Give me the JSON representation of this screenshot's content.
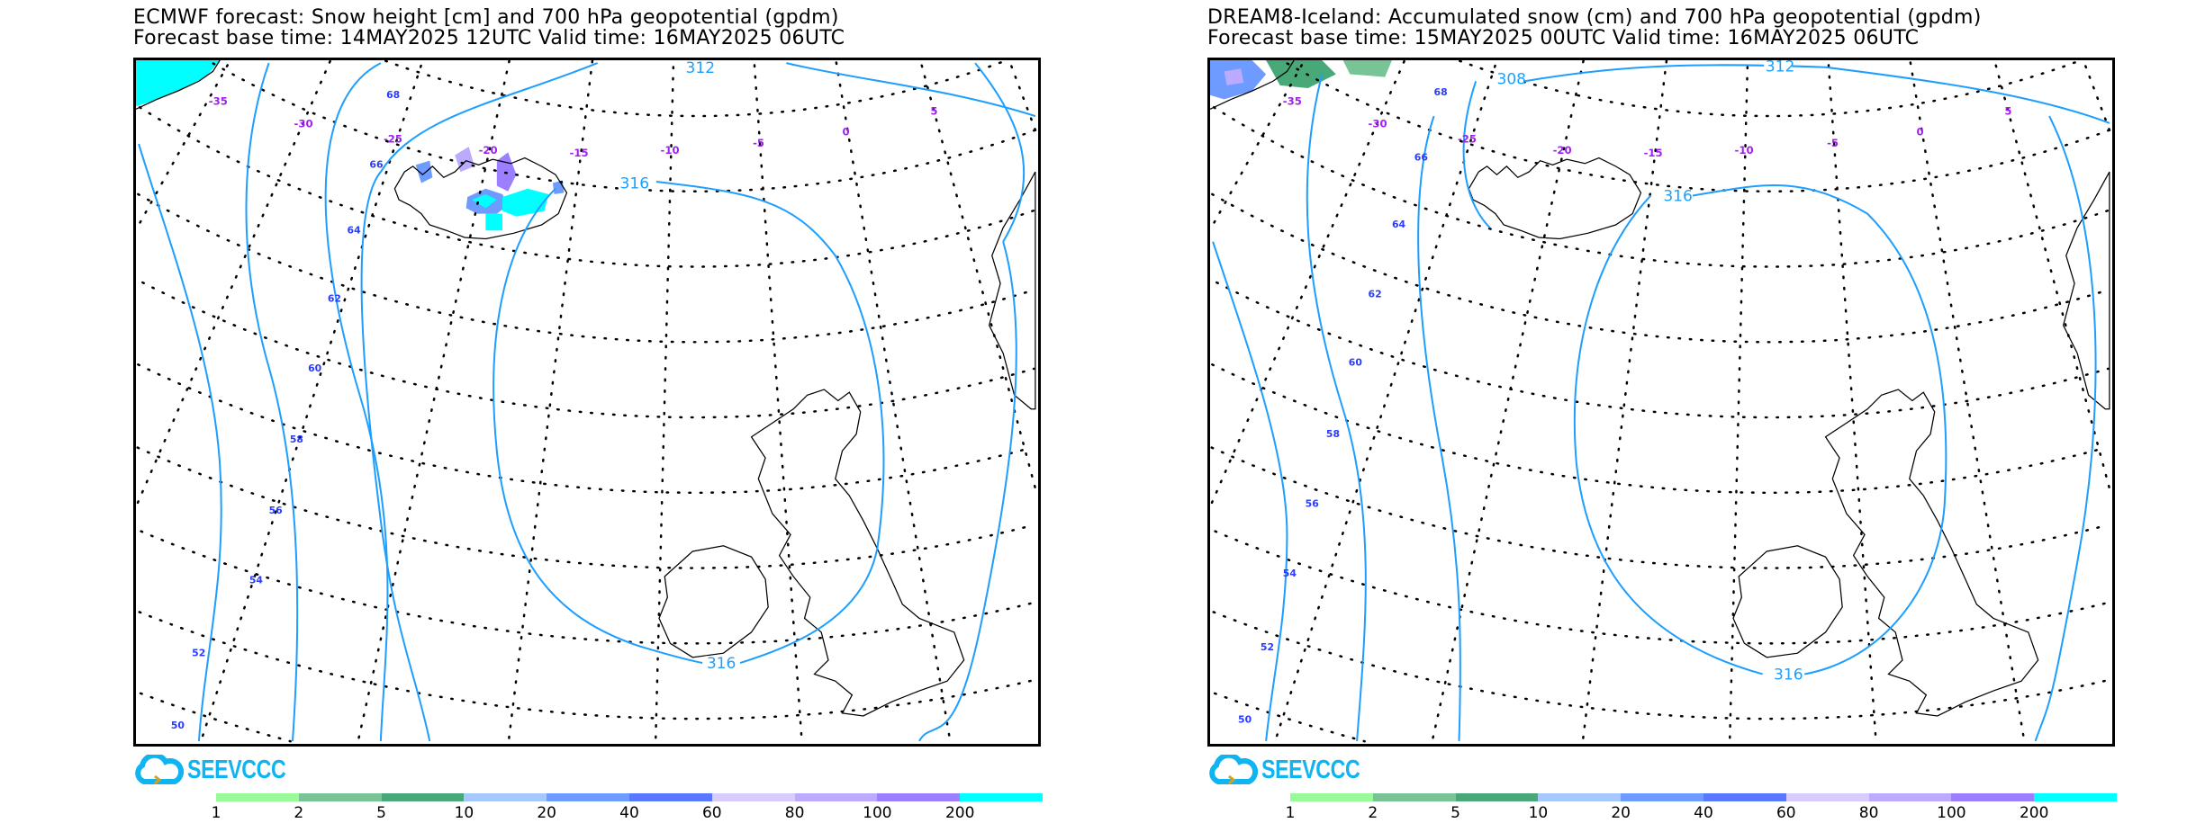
{
  "panels": [
    {
      "title_line1": "ECMWF forecast: Snow height [cm] and 700 hPa geopotential (gpdm)",
      "title_line2": "Forecast base time: 14MAY2025 12UTC    Valid time: 16MAY2025 06UTC",
      "lon_labels": [
        "-35",
        "-30",
        "-25",
        "-20",
        "-15",
        "-10",
        "-5",
        "0",
        "5"
      ],
      "lat_labels": [
        "68",
        "66",
        "64",
        "62",
        "60",
        "58",
        "56",
        "54",
        "52",
        "50"
      ],
      "contour_labels": [
        "312",
        "316",
        "316"
      ],
      "logo_text": "SEEVCCC"
    },
    {
      "title_line1": "DREAM8-Iceland: Accumulated snow (cm) and 700 hPa geopotential (gpdm)",
      "title_line2": "Forecast base time: 15MAY2025 00UTC    Valid time: 16MAY2025 06UTC",
      "lon_labels": [
        "-35",
        "-30",
        "-25",
        "-20",
        "-15",
        "-10",
        "-5",
        "0",
        "5"
      ],
      "lat_labels": [
        "68",
        "66",
        "64",
        "62",
        "60",
        "58",
        "56",
        "54",
        "52",
        "50"
      ],
      "contour_labels": [
        "308",
        "312",
        "316",
        "316"
      ],
      "logo_text": "SEEVCCC"
    }
  ],
  "legend": {
    "labels": [
      "1",
      "2",
      "5",
      "10",
      "20",
      "40",
      "60",
      "80",
      "100",
      "200"
    ],
    "colors": [
      "#98fb98",
      "#78c496",
      "#48a878",
      "#a6c8ff",
      "#6e9bff",
      "#5a78ff",
      "#d8ccff",
      "#bcaaff",
      "#9b7fff",
      "#00ffff"
    ]
  },
  "chart_data": {
    "type": "heatmap",
    "title": [
      "ECMWF forecast: Snow height [cm] and 700 hPa geopotential (gpdm)",
      "DREAM8-Iceland: Accumulated snow (cm) and 700 hPa geopotential (gpdm)"
    ],
    "colorbar_bounds": [
      1,
      2,
      5,
      10,
      20,
      40,
      60,
      80,
      100,
      200
    ],
    "contour_levels_gpdm": [
      308,
      312,
      316
    ],
    "longitudes": [
      -35,
      -30,
      -25,
      -20,
      -15,
      -10,
      -5,
      0,
      5
    ],
    "latitudes": [
      68,
      66,
      64,
      62,
      60,
      58,
      56,
      54,
      52,
      50
    ]
  }
}
